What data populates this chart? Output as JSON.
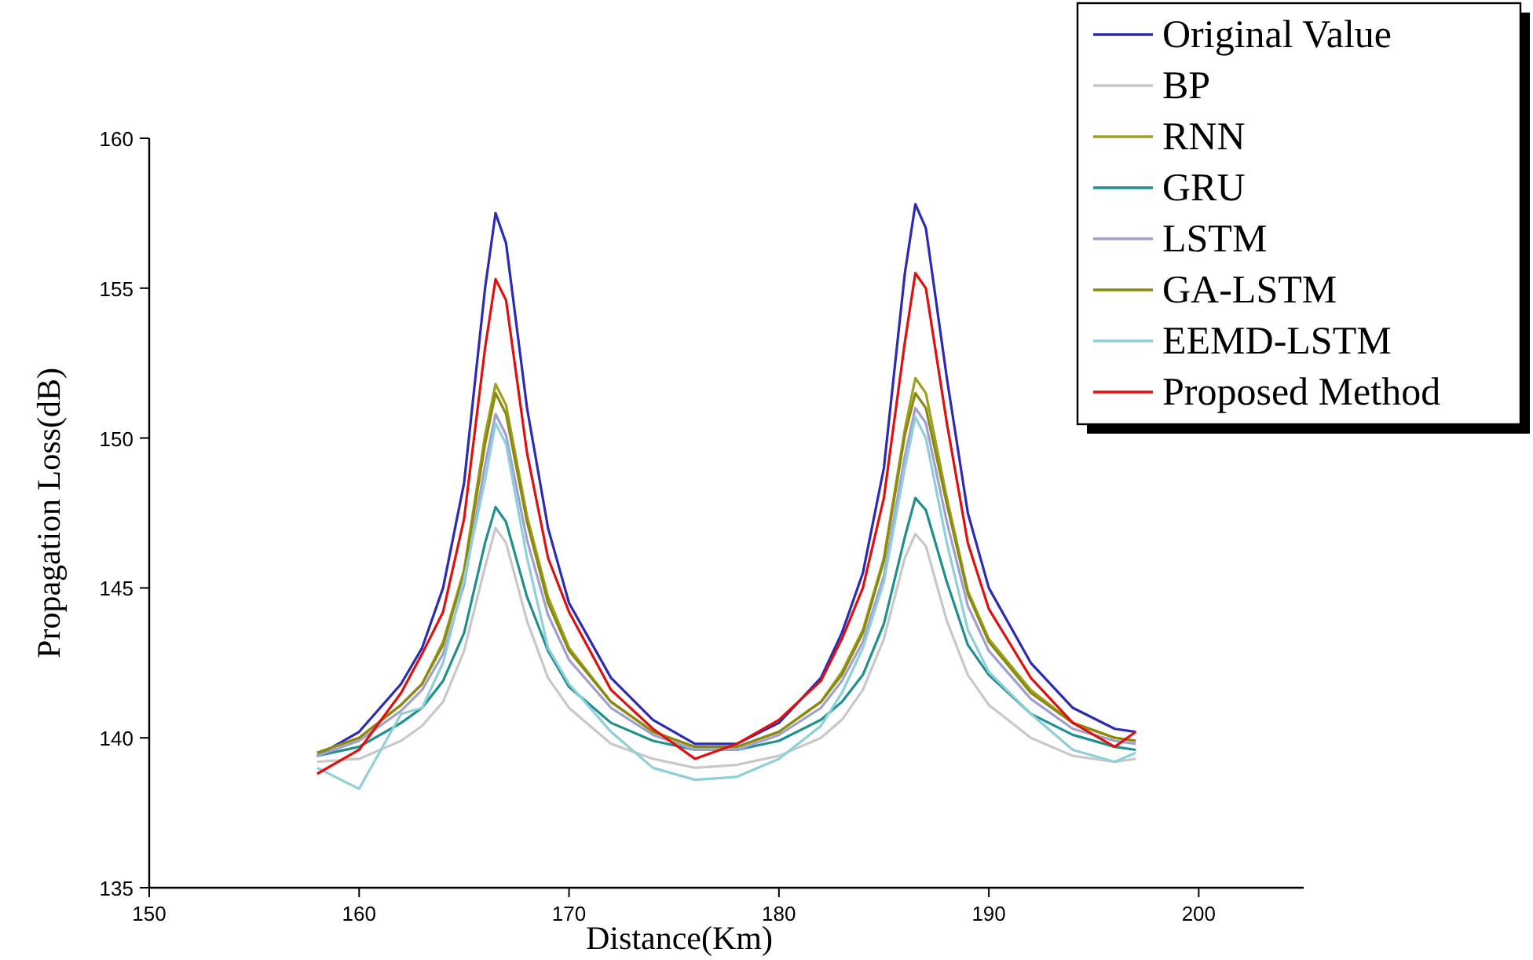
{
  "chart_data": {
    "type": "line",
    "xlabel": "Distance(Km)",
    "ylabel": "Propagation Loss(dB)",
    "xlim": [
      150,
      205
    ],
    "ylim": [
      135,
      160
    ],
    "xticks": [
      150,
      160,
      170,
      180,
      190,
      200
    ],
    "yticks": [
      135,
      140,
      145,
      150,
      155,
      160
    ],
    "grid": false,
    "legend": "top right",
    "marker": "none",
    "line_style": "solid",
    "x": [
      158,
      160,
      162,
      163,
      164,
      165,
      166,
      166.5,
      167,
      168,
      169,
      170,
      172,
      174,
      176,
      178,
      180,
      182,
      183,
      184,
      185,
      186,
      186.5,
      187,
      188,
      189,
      190,
      192,
      194,
      196,
      197
    ],
    "series": [
      {
        "name": "Original Value",
        "color": "#2b2bb5",
        "values": [
          139.4,
          140.2,
          141.8,
          143.0,
          145.0,
          148.5,
          155.0,
          157.5,
          156.5,
          151.0,
          147.0,
          144.5,
          142.0,
          140.6,
          139.8,
          139.8,
          140.5,
          142.0,
          143.5,
          145.5,
          149.0,
          155.5,
          157.8,
          157.0,
          152.0,
          147.5,
          145.0,
          142.5,
          141.0,
          140.3,
          140.2
        ]
      },
      {
        "name": "BP",
        "color": "#c8c8c8",
        "values": [
          139.2,
          139.3,
          139.9,
          140.4,
          141.2,
          142.9,
          145.7,
          147.0,
          146.5,
          143.9,
          142.0,
          141.0,
          139.8,
          139.3,
          139.0,
          139.1,
          139.4,
          140.0,
          140.6,
          141.6,
          143.3,
          146.0,
          146.8,
          146.4,
          143.9,
          142.1,
          141.1,
          140.0,
          139.4,
          139.2,
          139.3
        ]
      },
      {
        "name": "RNN",
        "color": "#a0a020",
        "values": [
          139.5,
          140.0,
          141.1,
          141.8,
          143.2,
          145.6,
          150.1,
          151.8,
          151.1,
          147.4,
          144.7,
          143.0,
          141.2,
          140.2,
          139.7,
          139.7,
          140.2,
          141.2,
          142.2,
          143.6,
          146.0,
          150.3,
          152.0,
          151.5,
          148.0,
          144.9,
          143.3,
          141.6,
          140.5,
          140.0,
          139.9
        ]
      },
      {
        "name": "GRU",
        "color": "#1f8f8f",
        "values": [
          139.4,
          139.7,
          140.5,
          141.0,
          141.9,
          143.5,
          146.5,
          147.7,
          147.2,
          144.7,
          142.9,
          141.7,
          140.5,
          139.9,
          139.6,
          139.6,
          139.9,
          140.6,
          141.2,
          142.1,
          143.8,
          146.7,
          148.0,
          147.6,
          145.2,
          143.1,
          142.1,
          140.8,
          140.1,
          139.7,
          139.6
        ]
      },
      {
        "name": "LSTM",
        "color": "#a0a0d0",
        "values": [
          139.4,
          139.9,
          140.9,
          141.6,
          142.8,
          145.1,
          149.1,
          150.8,
          150.1,
          146.6,
          144.1,
          142.6,
          141.0,
          140.1,
          139.6,
          139.6,
          140.1,
          141.0,
          141.9,
          143.2,
          145.4,
          149.4,
          151.0,
          150.5,
          147.2,
          144.4,
          142.9,
          141.3,
          140.3,
          139.9,
          139.8
        ]
      },
      {
        "name": "GA-LSTM",
        "color": "#8a8a10",
        "values": [
          139.5,
          140.0,
          141.1,
          141.8,
          143.1,
          145.5,
          149.8,
          151.5,
          150.8,
          147.2,
          144.5,
          142.9,
          141.2,
          140.2,
          139.7,
          139.7,
          140.2,
          141.2,
          142.1,
          143.5,
          145.9,
          150.1,
          151.5,
          151.0,
          147.8,
          144.8,
          143.2,
          141.5,
          140.5,
          140.0,
          139.9
        ]
      },
      {
        "name": "EEMD-LSTM",
        "color": "#8fd0d8",
        "values": [
          139.0,
          138.3,
          140.8,
          141.0,
          142.5,
          145.3,
          148.6,
          150.5,
          149.8,
          146.0,
          143.0,
          141.8,
          140.2,
          139.0,
          138.6,
          138.7,
          139.3,
          140.4,
          141.5,
          143.0,
          145.2,
          149.0,
          150.7,
          150.0,
          146.5,
          143.6,
          142.2,
          140.8,
          139.6,
          139.2,
          139.5
        ]
      },
      {
        "name": "Proposed Method",
        "color": "#e01010",
        "values": [
          138.8,
          139.6,
          141.5,
          142.8,
          144.2,
          147.3,
          153.0,
          155.3,
          154.6,
          149.5,
          146.0,
          144.2,
          141.6,
          140.3,
          139.3,
          139.8,
          140.6,
          141.9,
          143.3,
          145.0,
          148.0,
          153.2,
          155.5,
          155.0,
          150.5,
          146.5,
          144.3,
          142.0,
          140.5,
          139.7,
          140.2
        ]
      }
    ]
  }
}
